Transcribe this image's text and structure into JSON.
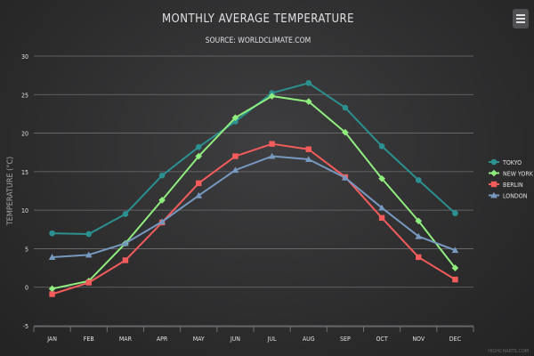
{
  "chart_data": {
    "type": "line",
    "title": "MONTHLY AVERAGE TEMPERATURE",
    "subtitle": "SOURCE: WORLDCLIMATE.COM",
    "ylabel": "TEMPERATURE (°C)",
    "xlabel": "",
    "ylim": [
      -5,
      30
    ],
    "yticks": [
      -5,
      0,
      5,
      10,
      15,
      20,
      25,
      30
    ],
    "grid": true,
    "legend_position": "right",
    "credits": "HIGHCHARTS.COM",
    "categories": [
      "JAN",
      "FEB",
      "MAR",
      "APR",
      "MAY",
      "JUN",
      "JUL",
      "AUG",
      "SEP",
      "OCT",
      "NOV",
      "DEC"
    ],
    "series": [
      {
        "name": "TOKYO",
        "color": "#2b908f",
        "marker": "circle",
        "values": [
          7.0,
          6.9,
          9.5,
          14.5,
          18.2,
          21.5,
          25.2,
          26.5,
          23.3,
          18.3,
          13.9,
          9.6
        ]
      },
      {
        "name": "NEW YORK",
        "color": "#90ee7e",
        "marker": "diamond",
        "values": [
          -0.2,
          0.8,
          5.7,
          11.3,
          17.0,
          22.0,
          24.8,
          24.1,
          20.1,
          14.1,
          8.6,
          2.5
        ]
      },
      {
        "name": "BERLIN",
        "color": "#f45b5b",
        "marker": "square",
        "values": [
          -0.9,
          0.6,
          3.5,
          8.4,
          13.5,
          17.0,
          18.6,
          17.9,
          14.3,
          9.0,
          3.9,
          1.0
        ]
      },
      {
        "name": "LONDON",
        "color": "#7798bf",
        "marker": "triangle",
        "values": [
          3.9,
          4.2,
          5.7,
          8.5,
          11.9,
          15.2,
          17.0,
          16.6,
          14.2,
          10.3,
          6.6,
          4.8
        ]
      }
    ]
  },
  "ui": {
    "menu_icon": "hamburger-icon"
  }
}
